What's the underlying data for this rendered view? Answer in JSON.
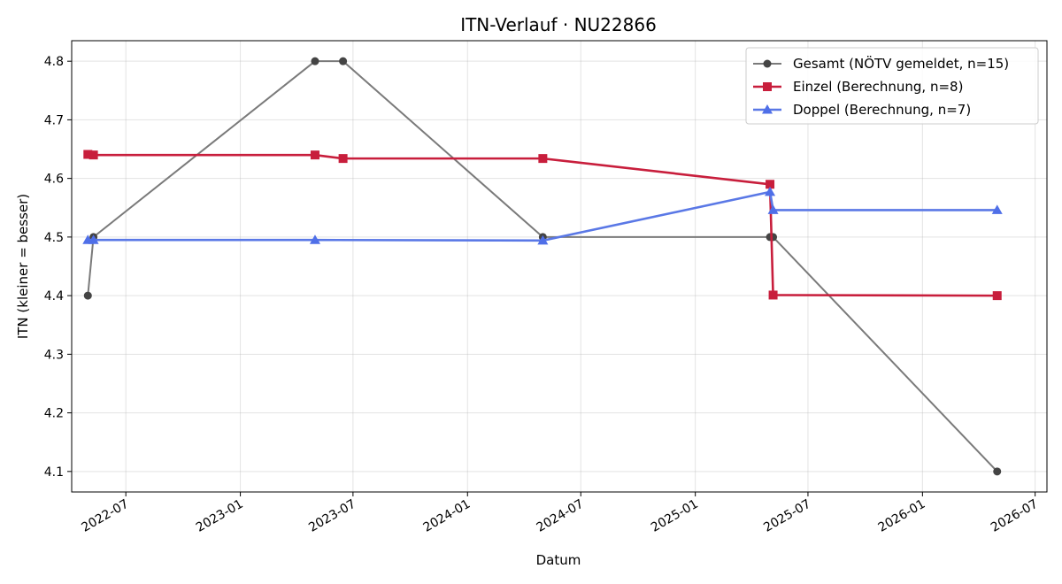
{
  "chart_data": {
    "type": "line",
    "title": "ITN-Verlauf · NU22866",
    "xlabel": "Datum",
    "ylabel": "ITN  (kleiner = besser)",
    "x_axis": "date",
    "xlim": [
      "2022-04-05",
      "2026-07-20"
    ],
    "ylim": [
      4.065,
      4.835
    ],
    "grid": true,
    "legend_position": "top-right",
    "x_ticks": [
      "2022-07",
      "2023-01",
      "2023-07",
      "2024-01",
      "2024-07",
      "2025-01",
      "2025-07",
      "2026-01",
      "2026-07"
    ],
    "y_ticks": [
      "4.1",
      "4.2",
      "4.3",
      "4.4",
      "4.5",
      "4.6",
      "4.7",
      "4.8"
    ],
    "series": [
      {
        "name": "Gesamt (NÖTV gemeldet, n=15)",
        "color": "#7a7a7a",
        "marker_color": "#444444",
        "marker": "circle",
        "points": [
          [
            "2022-05-01",
            4.4
          ],
          [
            "2022-05-10",
            4.5
          ],
          [
            "2023-05-01",
            4.8
          ],
          [
            "2023-06-15",
            4.8
          ],
          [
            "2024-05-01",
            4.5
          ],
          [
            "2025-05-01",
            4.5
          ],
          [
            "2025-05-06",
            4.5
          ],
          [
            "2026-05-01",
            4.1
          ]
        ]
      },
      {
        "name": "Einzel (Berechnung, n=8)",
        "color": "#c81e3c",
        "marker_color": "#c81e3c",
        "marker": "square",
        "points": [
          [
            "2022-05-01",
            4.641
          ],
          [
            "2022-05-10",
            4.64
          ],
          [
            "2023-05-01",
            4.64
          ],
          [
            "2023-06-15",
            4.634
          ],
          [
            "2024-05-01",
            4.634
          ],
          [
            "2025-05-01",
            4.59
          ],
          [
            "2025-05-06",
            4.401
          ],
          [
            "2026-05-01",
            4.4
          ]
        ]
      },
      {
        "name": "Doppel (Berechnung, n=7)",
        "color": "#5a78e6",
        "marker_color": "#4f6fe8",
        "marker": "triangle",
        "points": [
          [
            "2022-05-01",
            4.495
          ],
          [
            "2022-05-10",
            4.495
          ],
          [
            "2023-05-01",
            4.495
          ],
          [
            "2024-05-01",
            4.494
          ],
          [
            "2025-05-01",
            4.577
          ],
          [
            "2025-05-06",
            4.546
          ],
          [
            "2026-05-01",
            4.546
          ]
        ]
      }
    ]
  }
}
